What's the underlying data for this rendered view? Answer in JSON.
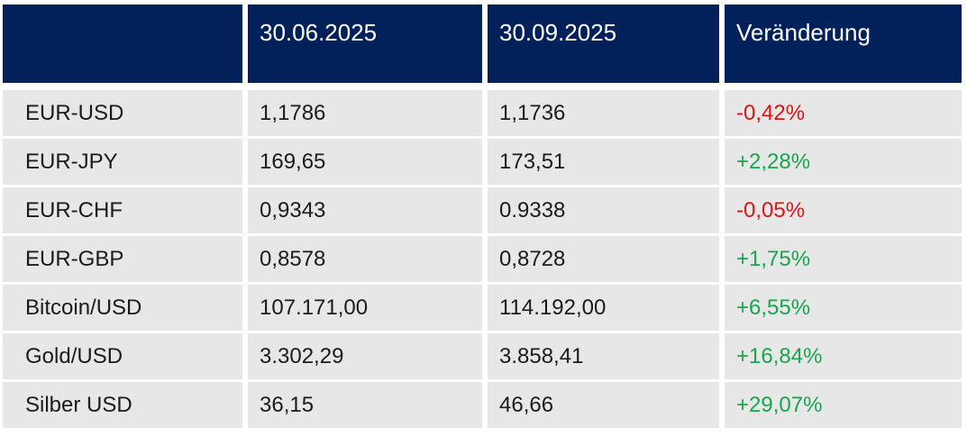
{
  "table": {
    "header": {
      "labels": [
        "",
        "30.06.2025",
        "30.09.2025",
        "Veränderung"
      ]
    },
    "rows": [
      {
        "label": "EUR-USD",
        "v1": "1,1786",
        "v2": "1,1736",
        "change": "-0,42%"
      },
      {
        "label": "EUR-JPY",
        "v1": "169,65",
        "v2": "173,51",
        "change": "+2,28%"
      },
      {
        "label": "EUR-CHF",
        "v1": "0,9343",
        "v2": "0.9338",
        "change": "-0,05%"
      },
      {
        "label": "EUR-GBP",
        "v1": "0,8578",
        "v2": "0,8728",
        "change": "+1,75%"
      },
      {
        "label": "Bitcoin/USD",
        "v1": "107.171,00",
        "v2": "114.192,00",
        "change": "+6,55%"
      },
      {
        "label": "Gold/USD",
        "v1": "3.302,29",
        "v2": "3.858,41",
        "change": "+16,84%"
      },
      {
        "label": "Silber USD",
        "v1": "36,15",
        "v2": "46,66",
        "change": "+29,07%"
      }
    ]
  },
  "colors": {
    "header_bg": "#02215B",
    "header_fg": "#FFFFFF",
    "row_bg": "#E7E7E7",
    "text": "#1B1B1B",
    "positive": "#17A64E",
    "negative": "#E01212"
  },
  "chart_data": {
    "type": "table",
    "title": "",
    "columns": [
      "",
      "30.06.2025",
      "30.09.2025",
      "Veränderung"
    ],
    "rows": [
      [
        "EUR-USD",
        "1,1786",
        "1,1736",
        "-0,42%"
      ],
      [
        "EUR-JPY",
        "169,65",
        "173,51",
        "+2,28%"
      ],
      [
        "EUR-CHF",
        "0,9343",
        "0.9338",
        "-0,05%"
      ],
      [
        "EUR-GBP",
        "0,8578",
        "0,8728",
        "+1,75%"
      ],
      [
        "Bitcoin/USD",
        "107.171,00",
        "114.192,00",
        "+6,55%"
      ],
      [
        "Gold/USD",
        "3.302,29",
        "3.858,41",
        "+16,84%"
      ],
      [
        "Silber USD",
        "36,15",
        "46,66",
        "+29,07%"
      ]
    ],
    "series": [
      {
        "name": "EUR-USD",
        "x": [
          "30.06.2025",
          "30.09.2025"
        ],
        "values": [
          1.1786,
          1.1736
        ],
        "change_pct": -0.42
      },
      {
        "name": "EUR-JPY",
        "x": [
          "30.06.2025",
          "30.09.2025"
        ],
        "values": [
          169.65,
          173.51
        ],
        "change_pct": 2.28
      },
      {
        "name": "EUR-CHF",
        "x": [
          "30.06.2025",
          "30.09.2025"
        ],
        "values": [
          0.9343,
          0.9338
        ],
        "change_pct": -0.05
      },
      {
        "name": "EUR-GBP",
        "x": [
          "30.06.2025",
          "30.09.2025"
        ],
        "values": [
          0.8578,
          0.8728
        ],
        "change_pct": 1.75
      },
      {
        "name": "Bitcoin/USD",
        "x": [
          "30.06.2025",
          "30.09.2025"
        ],
        "values": [
          107171.0,
          114192.0
        ],
        "change_pct": 6.55
      },
      {
        "name": "Gold/USD",
        "x": [
          "30.06.2025",
          "30.09.2025"
        ],
        "values": [
          3302.29,
          3858.41
        ],
        "change_pct": 16.84
      },
      {
        "name": "Silber USD",
        "x": [
          "30.06.2025",
          "30.09.2025"
        ],
        "values": [
          36.15,
          46.66
        ],
        "change_pct": 29.07
      }
    ]
  }
}
